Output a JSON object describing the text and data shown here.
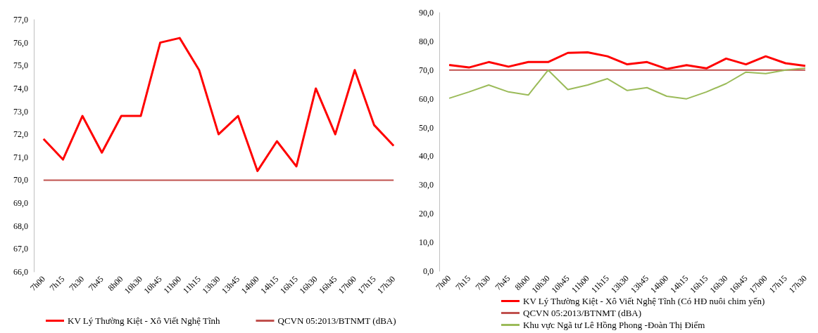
{
  "chart_data": [
    {
      "type": "line",
      "categories": [
        "7h00",
        "7h15",
        "7h30",
        "7h45",
        "8h00",
        "10h30",
        "10h45",
        "11h00",
        "11h15",
        "13h30",
        "13h45",
        "14h00",
        "14h15",
        "16h15",
        "16h30",
        "16h45",
        "17h00",
        "17h15",
        "17h30"
      ],
      "series": [
        {
          "name": "KV Lý Thường Kiệt - Xô Viết Nghệ Tĩnh",
          "color": "#ff0000",
          "values": [
            71.8,
            70.9,
            72.8,
            71.2,
            72.8,
            72.8,
            76.0,
            76.2,
            74.8,
            72.0,
            72.8,
            70.4,
            71.7,
            70.6,
            74.0,
            72.0,
            74.8,
            72.4,
            71.5
          ]
        },
        {
          "name": "QCVN 05:2013/BTNMT (dBA)",
          "color": "#c0504d",
          "values": [
            70,
            70,
            70,
            70,
            70,
            70,
            70,
            70,
            70,
            70,
            70,
            70,
            70,
            70,
            70,
            70,
            70,
            70,
            70
          ]
        }
      ],
      "ylim": [
        66,
        77
      ],
      "yticks": [
        {
          "value": 66,
          "label": "66,0"
        },
        {
          "value": 67,
          "label": "67,0"
        },
        {
          "value": 68,
          "label": "68,0"
        },
        {
          "value": 69,
          "label": "69,0"
        },
        {
          "value": 70,
          "label": "70,0"
        },
        {
          "value": 71,
          "label": "71,0"
        },
        {
          "value": 72,
          "label": "72,0"
        },
        {
          "value": 73,
          "label": "73,0"
        },
        {
          "value": 74,
          "label": "74,0"
        },
        {
          "value": 75,
          "label": "75,0"
        },
        {
          "value": 76,
          "label": "76,0"
        },
        {
          "value": 77,
          "label": "77,0"
        }
      ],
      "grid": false,
      "legend": "bottom",
      "marker": "none",
      "line_style": "solid"
    },
    {
      "type": "line",
      "categories": [
        "7h00",
        "7h15",
        "7h30",
        "7h45",
        "8h00",
        "10h30",
        "10h45",
        "11h00",
        "11h15",
        "13h30",
        "13h45",
        "14h00",
        "14h15",
        "16h15",
        "16h30",
        "16h45",
        "17h00",
        "17h15",
        "17h30"
      ],
      "series": [
        {
          "name": "KV Lý Thường Kiệt - Xô Viết Nghệ Tĩnh (Có HĐ nuôi chim yến)",
          "color": "#ff0000",
          "values": [
            71.8,
            70.9,
            72.8,
            71.2,
            72.8,
            72.8,
            76.0,
            76.2,
            74.8,
            72.0,
            72.8,
            70.4,
            71.7,
            70.6,
            74.0,
            72.0,
            74.8,
            72.4,
            71.5
          ]
        },
        {
          "name": "QCVN 05:2013/BTNMT (dBA)",
          "color": "#c0504d",
          "values": [
            70,
            70,
            70,
            70,
            70,
            70,
            70,
            70,
            70,
            70,
            70,
            70,
            70,
            70,
            70,
            70,
            70,
            70,
            70
          ]
        },
        {
          "name": "Khu vực Ngã tư Lê Hồng Phong -Đoàn Thị Điểm",
          "color": "#9bbb59",
          "values": [
            60.2,
            62.4,
            64.8,
            62.4,
            61.3,
            70.0,
            63.2,
            64.8,
            67.0,
            62.9,
            63.9,
            60.9,
            60.0,
            62.4,
            65.3,
            69.3,
            68.8,
            70.0,
            70.7
          ]
        }
      ],
      "ylim": [
        0,
        90
      ],
      "yticks": [
        {
          "value": 0,
          "label": "0,0"
        },
        {
          "value": 10,
          "label": "10,0"
        },
        {
          "value": 20,
          "label": "20,0"
        },
        {
          "value": 30,
          "label": "30,0"
        },
        {
          "value": 40,
          "label": "40,0"
        },
        {
          "value": 50,
          "label": "50,0"
        },
        {
          "value": 60,
          "label": "60,0"
        },
        {
          "value": 70,
          "label": "70,0"
        },
        {
          "value": 80,
          "label": "80,0"
        },
        {
          "value": 90,
          "label": "90,0"
        }
      ],
      "grid": false,
      "legend": "bottom",
      "marker": "none",
      "line_style": "solid"
    }
  ]
}
